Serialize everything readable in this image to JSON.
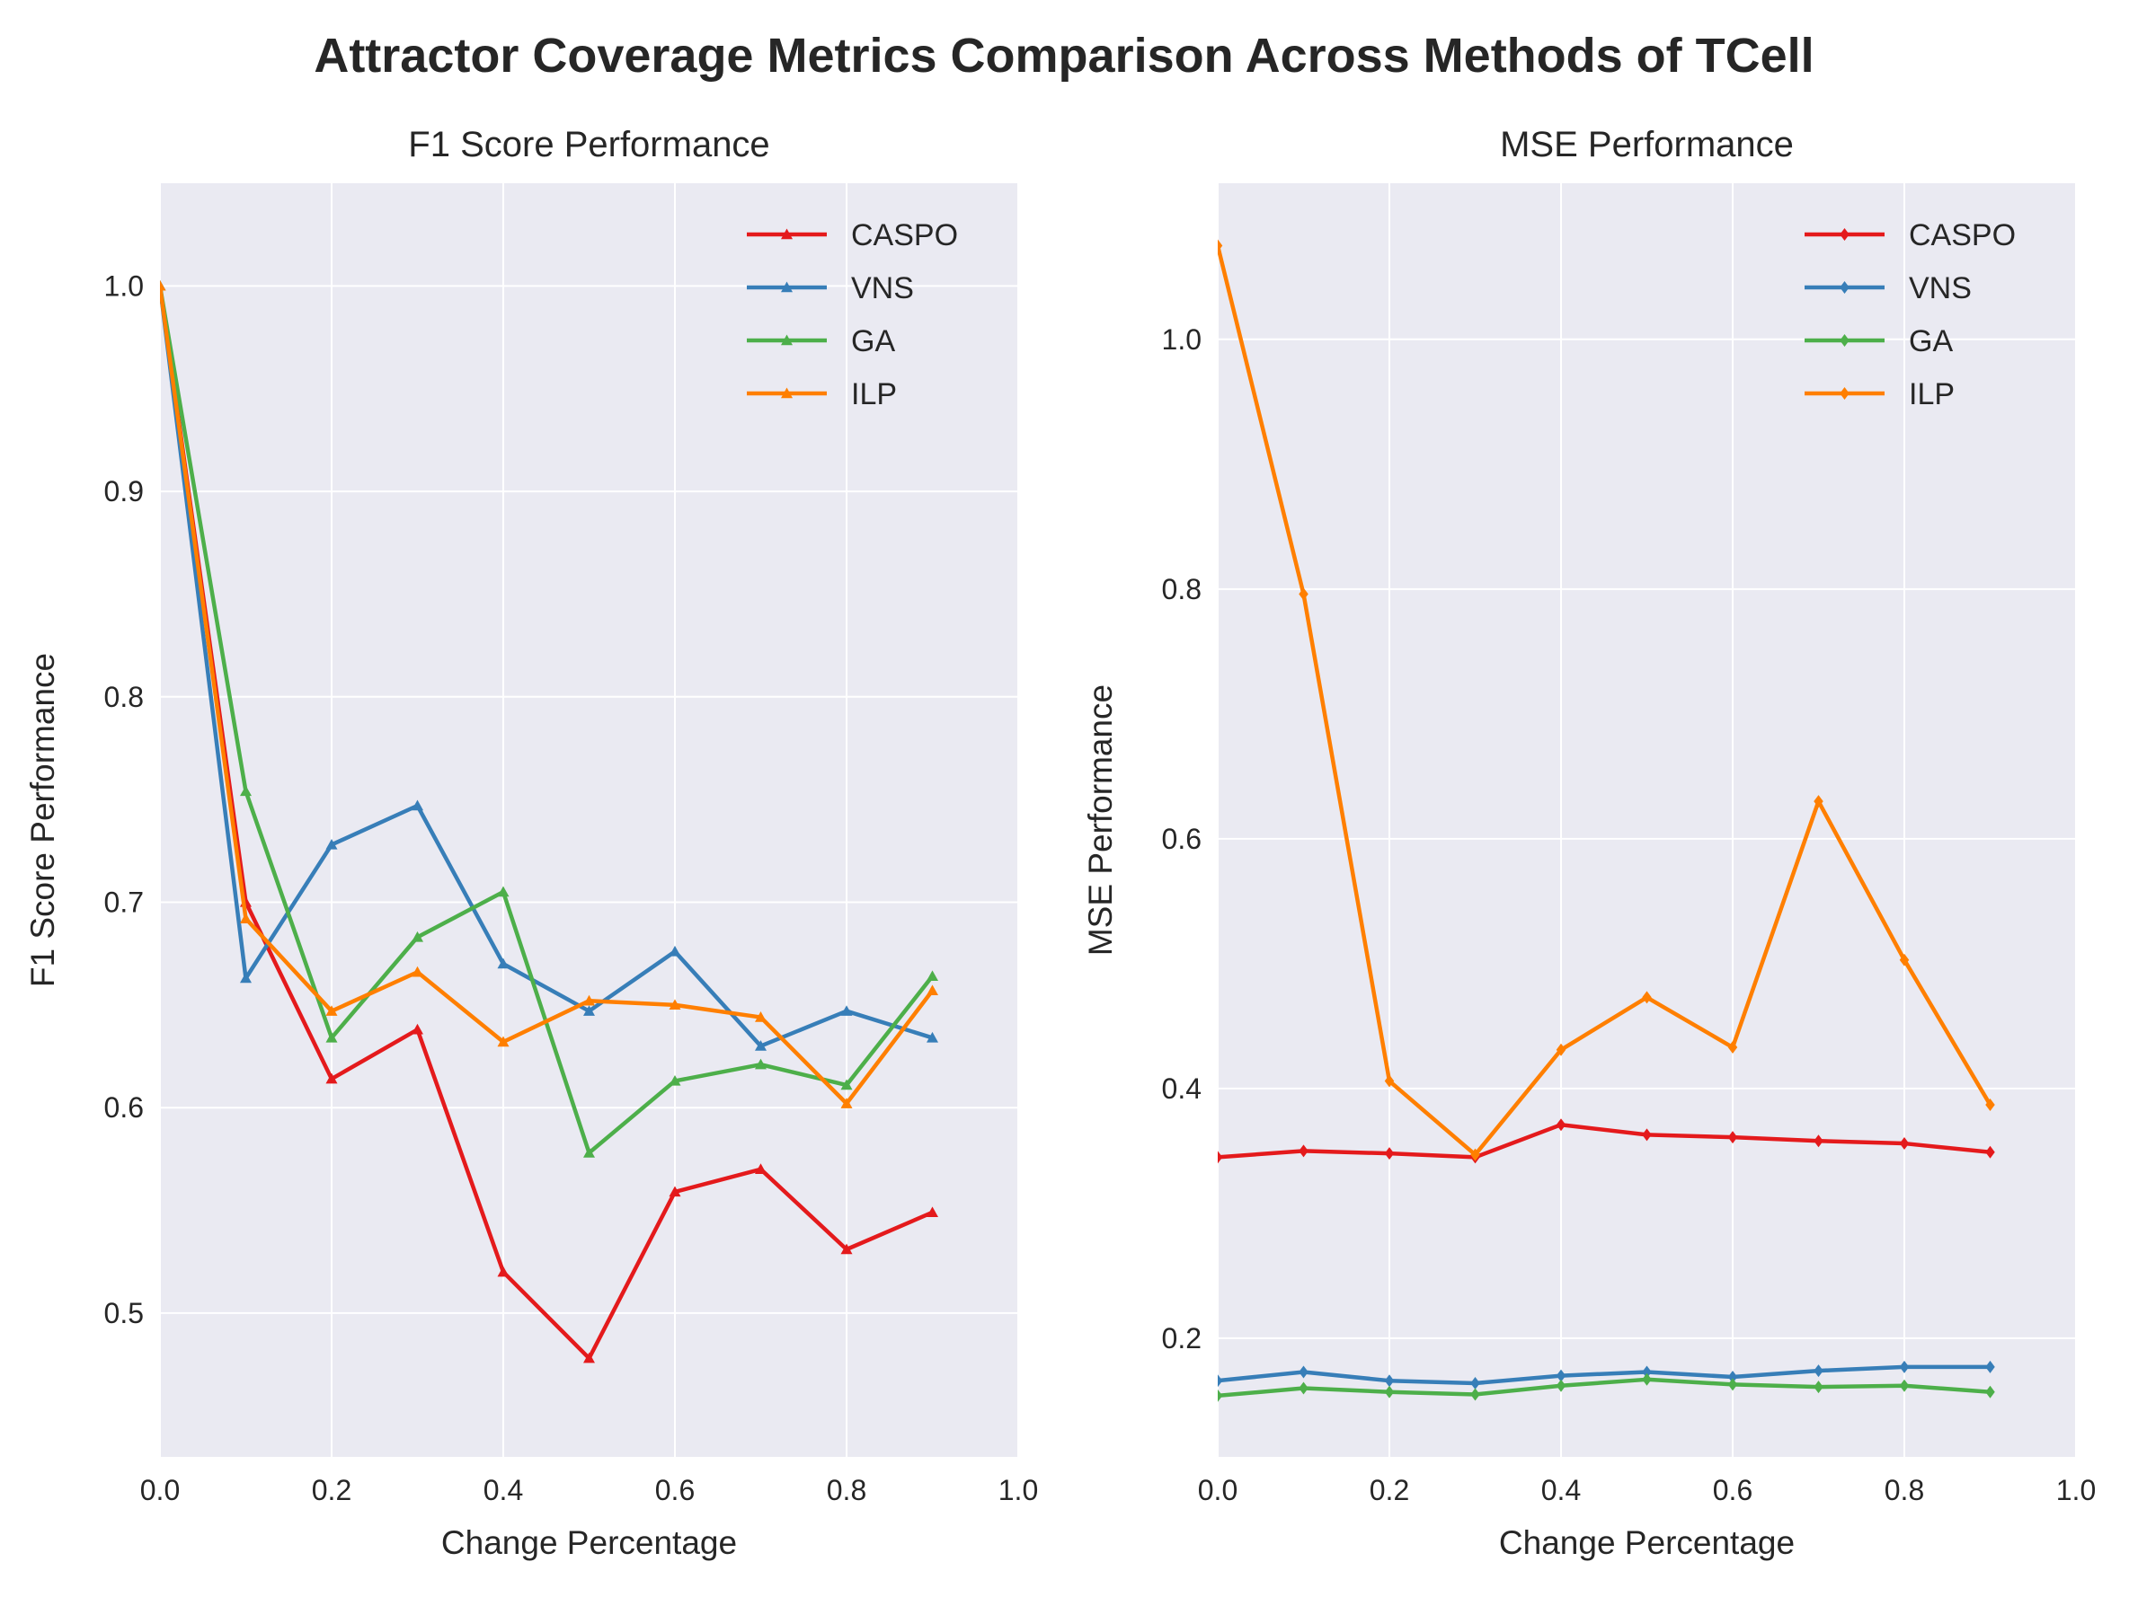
{
  "figure": {
    "suptitle": "Attractor Coverage Metrics Comparison Across Methods of TCell",
    "colors": {
      "background": "#eaeaf2",
      "grid": "#ffffff",
      "CASPO": "#e41a1c",
      "VNS": "#377eb8",
      "GA": "#4daf4a",
      "ILP": "#ff7f00"
    }
  },
  "chart_data": [
    {
      "id": "f1",
      "type": "line",
      "title": "F1 Score Performance",
      "xlabel": "Change Percentage",
      "ylabel": "F1 Score Performance",
      "xlim": [
        0.0,
        1.0
      ],
      "ylim": [
        0.43,
        1.05
      ],
      "xticks": [
        0.0,
        0.2,
        0.4,
        0.6,
        0.8,
        1.0
      ],
      "yticks": [
        0.5,
        0.6,
        0.7,
        0.8,
        0.9,
        1.0
      ],
      "marker": "triangle",
      "grid": true,
      "legend_position": "top-right",
      "x": [
        0.0,
        0.1,
        0.2,
        0.3,
        0.4,
        0.5,
        0.6,
        0.7,
        0.8,
        0.9
      ],
      "series": [
        {
          "name": "CASPO",
          "color": "#e41a1c",
          "values": [
            1.0,
            0.7,
            0.614,
            0.638,
            0.52,
            0.478,
            0.559,
            0.57,
            0.531,
            0.549
          ]
        },
        {
          "name": "VNS",
          "color": "#377eb8",
          "values": [
            1.0,
            0.663,
            0.728,
            0.747,
            0.67,
            0.647,
            0.676,
            0.63,
            0.647,
            0.634
          ]
        },
        {
          "name": "GA",
          "color": "#4daf4a",
          "values": [
            1.0,
            0.754,
            0.634,
            0.683,
            0.705,
            0.578,
            0.613,
            0.621,
            0.611,
            0.664
          ]
        },
        {
          "name": "ILP",
          "color": "#ff7f00",
          "values": [
            1.0,
            0.692,
            0.647,
            0.666,
            0.632,
            0.652,
            0.65,
            0.644,
            0.602,
            0.657
          ]
        }
      ]
    },
    {
      "id": "mse",
      "type": "line",
      "title": "MSE Performance",
      "xlabel": "Change Percentage",
      "ylabel": "MSE Performance",
      "xlim": [
        0.0,
        1.0
      ],
      "ylim": [
        0.105,
        1.125
      ],
      "xticks": [
        0.0,
        0.2,
        0.4,
        0.6,
        0.8,
        1.0
      ],
      "yticks": [
        0.2,
        0.4,
        0.6,
        0.8,
        1.0
      ],
      "marker": "diamond",
      "grid": true,
      "legend_position": "top-right",
      "x": [
        0.0,
        0.1,
        0.2,
        0.3,
        0.4,
        0.5,
        0.6,
        0.7,
        0.8,
        0.9
      ],
      "series": [
        {
          "name": "CASPO",
          "color": "#e41a1c",
          "values": [
            0.345,
            0.35,
            0.348,
            0.345,
            0.371,
            0.363,
            0.361,
            0.358,
            0.356,
            0.349
          ]
        },
        {
          "name": "VNS",
          "color": "#377eb8",
          "values": [
            0.166,
            0.173,
            0.166,
            0.164,
            0.17,
            0.173,
            0.169,
            0.174,
            0.177,
            0.177
          ]
        },
        {
          "name": "GA",
          "color": "#4daf4a",
          "values": [
            0.154,
            0.16,
            0.157,
            0.155,
            0.162,
            0.167,
            0.163,
            0.161,
            0.162,
            0.157
          ]
        },
        {
          "name": "ILP",
          "color": "#ff7f00",
          "values": [
            1.075,
            0.796,
            0.406,
            0.347,
            0.431,
            0.473,
            0.433,
            0.63,
            0.503,
            0.387
          ]
        }
      ]
    }
  ]
}
